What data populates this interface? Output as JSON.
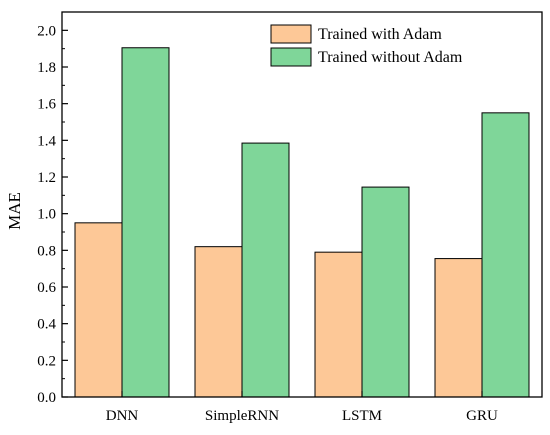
{
  "chart_data": {
    "type": "bar",
    "title": "",
    "xlabel": "",
    "ylabel": "MAE",
    "ylim": [
      0,
      2.1
    ],
    "yticks": [
      "0.0",
      "0.2",
      "0.4",
      "0.6",
      "0.8",
      "1.0",
      "1.2",
      "1.4",
      "1.6",
      "1.8",
      "2.0"
    ],
    "categories": [
      "DNN",
      "SimpleRNN",
      "LSTM",
      "GRU"
    ],
    "series": [
      {
        "name": "Trained with Adam",
        "color": "#FDC897",
        "values": [
          0.95,
          0.82,
          0.79,
          0.755
        ]
      },
      {
        "name": "Trained without Adam",
        "color": "#7FD699",
        "values": [
          1.905,
          1.385,
          1.145,
          1.55
        ]
      }
    ],
    "grid": false,
    "legend_position": "top-right"
  }
}
